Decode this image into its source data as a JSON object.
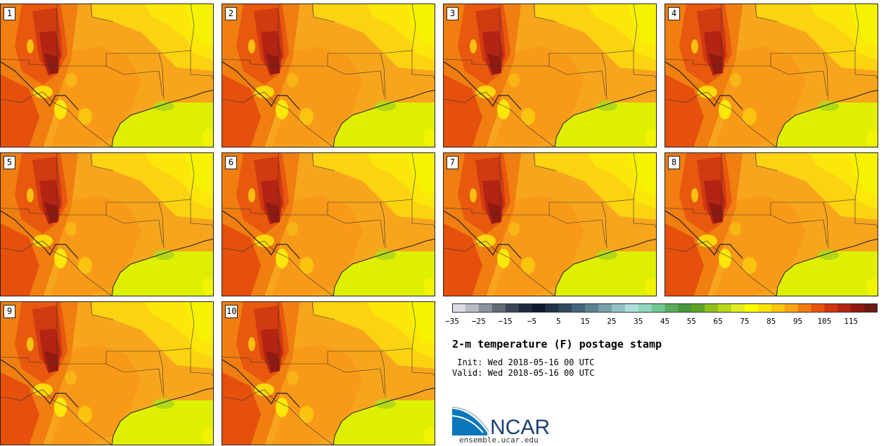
{
  "panels": [
    {
      "label": "1"
    },
    {
      "label": "2"
    },
    {
      "label": "3"
    },
    {
      "label": "4"
    },
    {
      "label": "5"
    },
    {
      "label": "6"
    },
    {
      "label": "7"
    },
    {
      "label": "8"
    },
    {
      "label": "9"
    },
    {
      "label": "10"
    }
  ],
  "colorbar": {
    "colors": [
      "#dadbe3",
      "#b9bcc6",
      "#8b919d",
      "#626a78",
      "#3b4557",
      "#1e2a3d",
      "#0e1a2e",
      "#1f3247",
      "#2e4a60",
      "#43667a",
      "#5b8392",
      "#76a2ab",
      "#92c2c6",
      "#aee0dc",
      "#90d8be",
      "#72c890",
      "#5aac5c",
      "#46973e",
      "#5fa424",
      "#8ec018",
      "#b8d818",
      "#e0ee20",
      "#ffff00",
      "#fde407",
      "#fbc60e",
      "#f9a414",
      "#f47a0e",
      "#e9520d",
      "#cf3510",
      "#b42313",
      "#8e1a12",
      "#6b1b12"
    ],
    "tick_labels": [
      "−35",
      "−25",
      "−15",
      "−5",
      "5",
      "15",
      "25",
      "35",
      "45",
      "55",
      "65",
      "75",
      "85",
      "95",
      "105",
      "115"
    ]
  },
  "title": "2-m temperature (F) postage stamp",
  "init_line": " Init: Wed 2018-05-16 00 UTC",
  "valid_line": "Valid: Wed 2018-05-16 00 UTC",
  "logo": {
    "text": "NCAR",
    "url": "ensemble.ucar.edu",
    "blue": "#0b76bb",
    "navy": "#1b3e6e"
  }
}
